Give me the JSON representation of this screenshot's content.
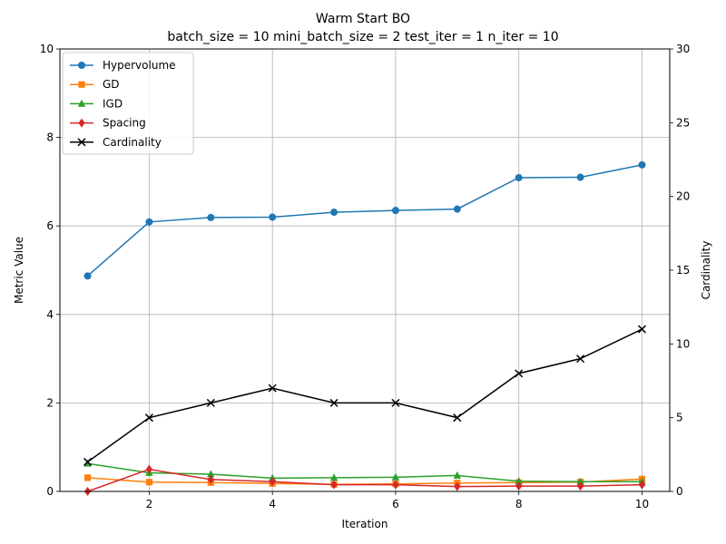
{
  "chart_data": {
    "type": "line",
    "title": "Warm Start BO",
    "subtitle": "batch_size = 10 mini_batch_size = 2 test_iter = 1 n_iter = 10",
    "xlabel": "Iteration",
    "ylabel": "Metric Value",
    "y2label": "Cardinality",
    "x": [
      1,
      2,
      3,
      4,
      5,
      6,
      7,
      8,
      9,
      10
    ],
    "xticks": [
      2,
      4,
      6,
      8,
      10
    ],
    "xlim": [
      0.55,
      10.45
    ],
    "ylim": [
      0,
      10
    ],
    "yticks": [
      0,
      2,
      4,
      6,
      8,
      10
    ],
    "y2lim": [
      0,
      30
    ],
    "y2ticks": [
      0,
      5,
      10,
      15,
      20,
      25,
      30
    ],
    "grid": true,
    "legend_position": "upper-left",
    "series": [
      {
        "name": "Hypervolume",
        "axis": "left",
        "color": "#1f77b4",
        "marker": "circle",
        "values": [
          4.87,
          6.09,
          6.19,
          6.2,
          6.31,
          6.35,
          6.38,
          7.09,
          7.1,
          7.38
        ]
      },
      {
        "name": "GD",
        "axis": "left",
        "color": "#ff7f0e",
        "marker": "square",
        "values": [
          0.31,
          0.21,
          0.2,
          0.18,
          0.16,
          0.17,
          0.19,
          0.2,
          0.21,
          0.28
        ]
      },
      {
        "name": "IGD",
        "axis": "left",
        "color": "#2ca02c",
        "marker": "triangle",
        "values": [
          0.63,
          0.42,
          0.39,
          0.3,
          0.31,
          0.32,
          0.36,
          0.23,
          0.22,
          0.22
        ]
      },
      {
        "name": "Spacing",
        "axis": "left",
        "color": "#d62728",
        "marker": "diamond",
        "values": [
          0.0,
          0.5,
          0.27,
          0.22,
          0.15,
          0.15,
          0.11,
          0.12,
          0.12,
          0.15
        ]
      },
      {
        "name": "Cardinality",
        "axis": "right",
        "color": "#000000",
        "marker": "x",
        "values": [
          2,
          5,
          6,
          7,
          6,
          6,
          5,
          8,
          9,
          11
        ]
      }
    ]
  }
}
